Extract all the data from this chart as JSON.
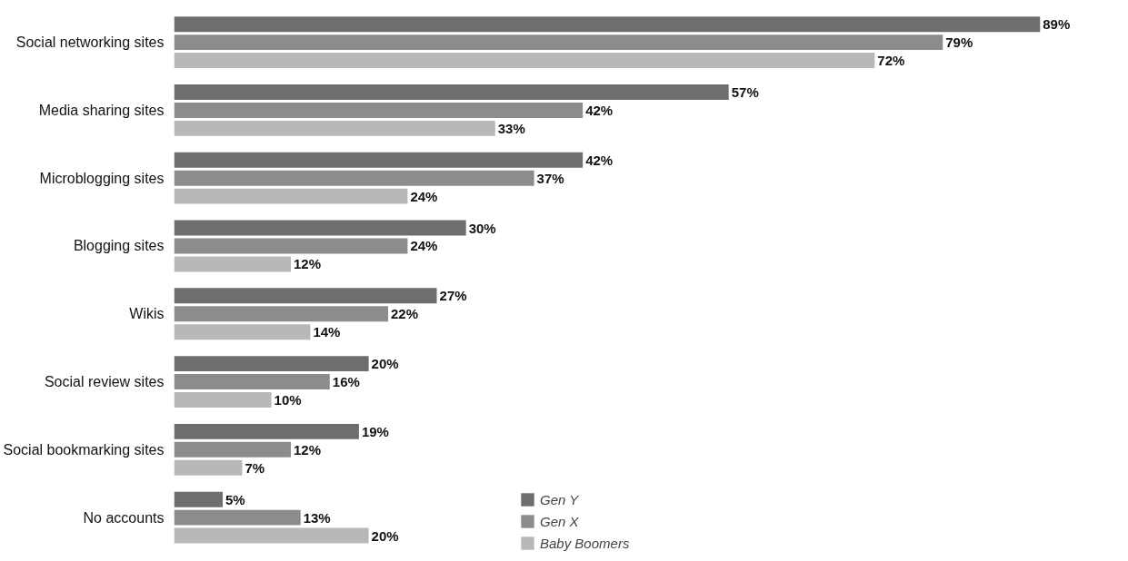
{
  "chart_data": {
    "type": "bar",
    "orientation": "horizontal",
    "categories": [
      "Social networking sites",
      "Media sharing sites",
      "Microblogging sites",
      "Blogging sites",
      "Wikis",
      "Social review sites",
      "Social bookmarking sites",
      "No accounts"
    ],
    "series": [
      {
        "name": "Gen Y",
        "color": "#6e6e6e",
        "values": [
          89,
          57,
          42,
          30,
          27,
          20,
          19,
          5
        ],
        "value_labels": [
          "89%",
          "57%",
          "42%",
          "30%",
          "27%",
          "20%",
          "19%",
          "5%"
        ]
      },
      {
        "name": "Gen X",
        "color": "#8c8c8c",
        "values": [
          79,
          42,
          37,
          24,
          22,
          16,
          12,
          13
        ],
        "value_labels": [
          "79%",
          "42%",
          "37%",
          "24%",
          "22%",
          "16%",
          "12%",
          "13%"
        ]
      },
      {
        "name": "Baby Boomers",
        "color": "#b8b8b8",
        "values": [
          72,
          33,
          24,
          12,
          14,
          10,
          7,
          20
        ],
        "value_labels": [
          "72%",
          "33%",
          "24%",
          "12%",
          "14%",
          "10%",
          "7%",
          "20%"
        ]
      }
    ],
    "legend": "bottom",
    "tick_labels": "y",
    "grid": false
  }
}
